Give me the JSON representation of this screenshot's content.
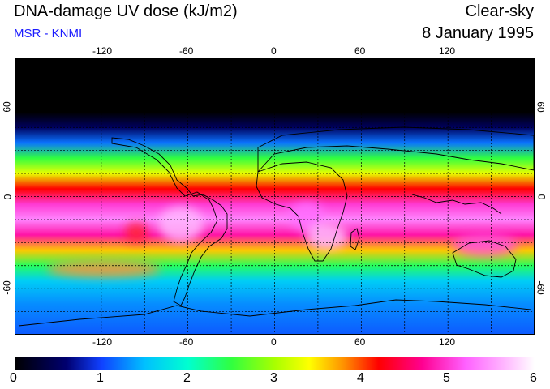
{
  "header": {
    "title": "DNA-damage UV dose (kJ/m2)",
    "credit": "MSR - KNMI",
    "sky_mode": "Clear-sky",
    "date": "8 January 1995"
  },
  "map": {
    "projection": "equirectangular",
    "lon_range": [
      -180,
      180
    ],
    "lat_range": [
      -90,
      90
    ],
    "lon_tick_values": [
      -120,
      -60,
      0,
      60,
      120
    ],
    "lon_tick_labels": [
      "-120",
      "-60",
      "0",
      "60",
      "120"
    ],
    "lat_tick_values": [
      60,
      0,
      -60
    ],
    "lat_tick_labels": [
      "60",
      "0",
      "-60"
    ],
    "grid_lon_step": 30,
    "grid_lat_step": 15,
    "dose_bands_by_latitude": [
      {
        "lat": 90,
        "dose": 0.0
      },
      {
        "lat": 55,
        "dose": 0.0
      },
      {
        "lat": 45,
        "dose": 0.5
      },
      {
        "lat": 35,
        "dose": 1.2
      },
      {
        "lat": 25,
        "dose": 2.5
      },
      {
        "lat": 15,
        "dose": 3.3
      },
      {
        "lat": 5,
        "dose": 4.2
      },
      {
        "lat": -5,
        "dose": 5.0
      },
      {
        "lat": -15,
        "dose": 5.4
      },
      {
        "lat": -25,
        "dose": 4.8
      },
      {
        "lat": -35,
        "dose": 3.6
      },
      {
        "lat": -45,
        "dose": 2.4
      },
      {
        "lat": -55,
        "dose": 1.6
      },
      {
        "lat": -70,
        "dose": 1.3
      },
      {
        "lat": -90,
        "dose": 1.1
      }
    ]
  },
  "colorbar": {
    "min": 0,
    "max": 6,
    "labels": [
      "0",
      "1",
      "2",
      "3",
      "4",
      "5",
      "6"
    ],
    "stops": [
      {
        "value": 0.0,
        "color": "#000000"
      },
      {
        "value": 0.6,
        "color": "#000070"
      },
      {
        "value": 1.0,
        "color": "#1040ff"
      },
      {
        "value": 1.5,
        "color": "#00c0ff"
      },
      {
        "value": 2.0,
        "color": "#00ffd0"
      },
      {
        "value": 2.5,
        "color": "#30ff40"
      },
      {
        "value": 3.0,
        "color": "#a8ff00"
      },
      {
        "value": 3.4,
        "color": "#ffff00"
      },
      {
        "value": 3.8,
        "color": "#ff9000"
      },
      {
        "value": 4.2,
        "color": "#ff0000"
      },
      {
        "value": 4.7,
        "color": "#ff0090"
      },
      {
        "value": 5.2,
        "color": "#ff60ff"
      },
      {
        "value": 5.7,
        "color": "#ffc0ff"
      },
      {
        "value": 6.0,
        "color": "#ffffff"
      }
    ]
  }
}
